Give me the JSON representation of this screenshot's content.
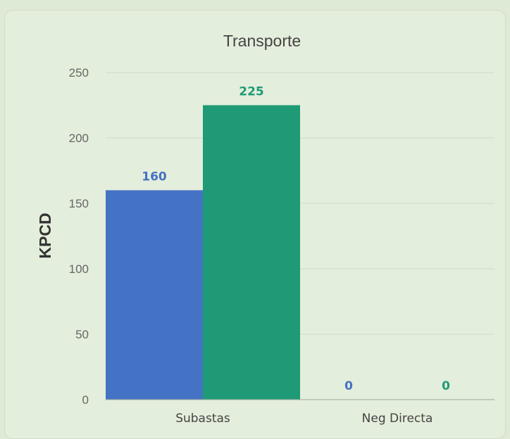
{
  "chart_data": {
    "type": "bar",
    "title": "Transporte",
    "xlabel": "",
    "ylabel": "KPCD",
    "categories": [
      "Subastas",
      "Neg Directa"
    ],
    "series": [
      {
        "values": [
          160,
          0
        ],
        "color": "#4472c4"
      },
      {
        "values": [
          225,
          0
        ],
        "color": "#1f9a76"
      }
    ],
    "ylim": [
      0,
      250
    ],
    "yticks": [
      0,
      50,
      100,
      150,
      200,
      250
    ],
    "grid": true,
    "legend": "none"
  },
  "colors": {
    "background": "#e4eedc",
    "grid": "#cfdac7",
    "axis": "#9aa59a"
  }
}
